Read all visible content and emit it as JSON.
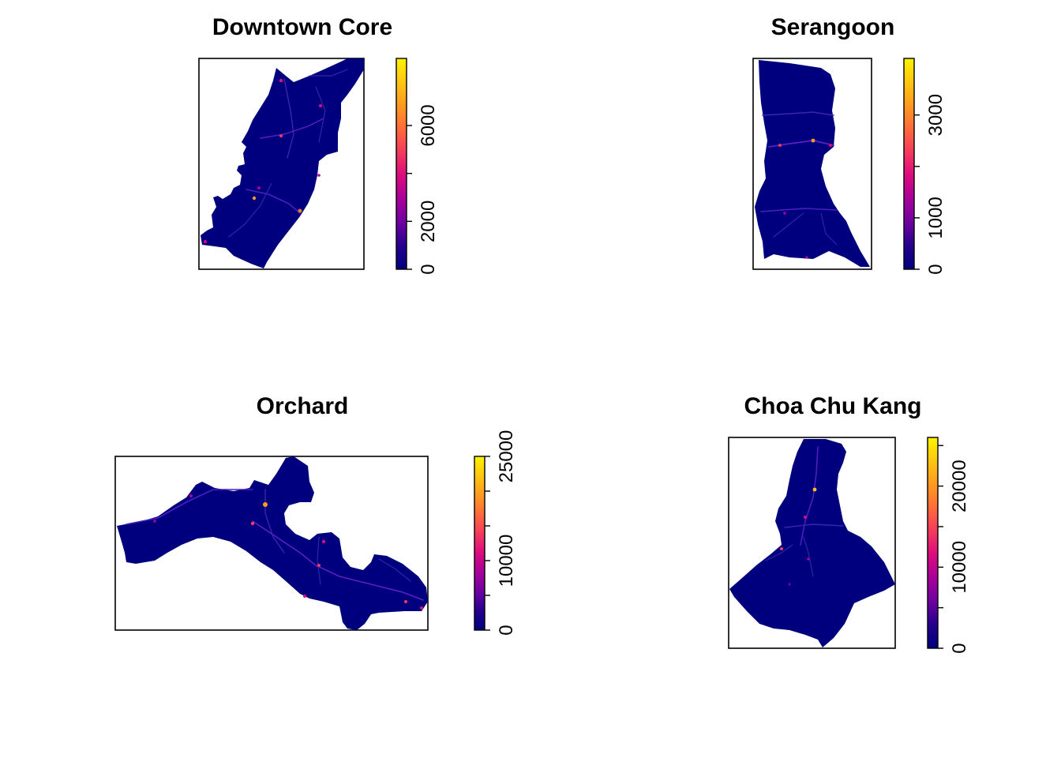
{
  "colorbar_colors": [
    "#00007e",
    "#24008f",
    "#6e00a1",
    "#a8009a",
    "#dc0b7e",
    "#f43a5e",
    "#ff6b3a",
    "#ff9a1f",
    "#ffc70f",
    "#fff200"
  ],
  "chart_data": [
    {
      "type": "raster",
      "title": "Downtown Core",
      "legend_ticks": [
        "0",
        "2000",
        "6000"
      ],
      "legend_ticks_numeric": [
        0,
        2000,
        4000,
        6000
      ],
      "legend_range": [
        0,
        8800
      ]
    },
    {
      "type": "raster",
      "title": "Serangoon",
      "legend_ticks": [
        "0",
        "1000",
        "3000"
      ],
      "legend_ticks_numeric": [
        0,
        1000,
        2000,
        3000
      ],
      "legend_range": [
        0,
        4100
      ]
    },
    {
      "type": "raster",
      "title": "Orchard",
      "legend_ticks": [
        "0",
        "10000",
        "25000"
      ],
      "legend_ticks_numeric": [
        0,
        5000,
        10000,
        15000,
        20000,
        25000
      ],
      "legend_range": [
        0,
        25000
      ]
    },
    {
      "type": "raster",
      "title": "Choa Chu Kang",
      "legend_ticks": [
        "0",
        "10000",
        "20000"
      ],
      "legend_ticks_numeric": [
        0,
        5000,
        10000,
        15000,
        20000,
        25000
      ],
      "legend_range": [
        0,
        26000
      ]
    }
  ]
}
